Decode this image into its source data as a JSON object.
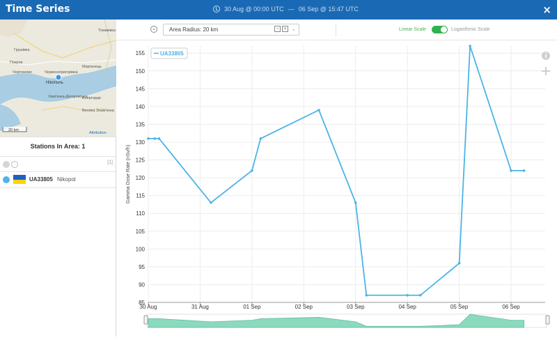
{
  "window": {
    "title": "Time Series",
    "range_start": "30 Aug @ 00:00 UTC",
    "range_sep": "—",
    "range_end": "06 Sep @ 15:47 UTC",
    "close_icon": "×"
  },
  "map": {
    "labels": [
      "Томаківка",
      "Грушівка",
      "Покров",
      "Чортомлик",
      "Червоногригорівка",
      "Марганець",
      "Нікополь",
      "Кам'янка-Дніпровська",
      "Енергодар",
      "Велика Знам'янка"
    ],
    "scale": "20 km",
    "attribution": "Attribution",
    "water_color": "#a9cde3",
    "marker_color": "#3b97e3"
  },
  "sidebar": {
    "stations_title": "Stations In Area: 1",
    "all_count": "[1]",
    "station": {
      "code": "UA33805",
      "name": "Nikopol",
      "color": "#4fb3e8"
    }
  },
  "toolbar": {
    "radius_label": "Area Radius: 20 km",
    "minus": "−",
    "plus": "+",
    "chevron": "⌄",
    "linear_label": "Linear Scale",
    "log_label": "Logarithmic Scale",
    "scale_is_linear": true
  },
  "chart_data": {
    "type": "line",
    "title": "",
    "xlabel": "",
    "ylabel": "Gamma Dose Rate (nSv/h)",
    "legend": "UA33805",
    "legend_placement": "top-left",
    "line_color": "#4ab4e6",
    "navigator_color": "#6fd2ad",
    "grid": true,
    "ylim": [
      85,
      157
    ],
    "yticks": [
      85,
      90,
      95,
      100,
      105,
      110,
      115,
      120,
      125,
      130,
      135,
      140,
      145,
      150,
      155
    ],
    "xlim": [
      "2025-08-30T00:00",
      "2025-09-06T15:47"
    ],
    "xticks": [
      {
        "t": "2025-08-30T00:00",
        "label": "30 Aug"
      },
      {
        "t": "2025-08-31T00:00",
        "label": "31 Aug"
      },
      {
        "t": "2025-09-01T00:00",
        "label": "01 Sep"
      },
      {
        "t": "2025-09-02T00:00",
        "label": "02 Sep"
      },
      {
        "t": "2025-09-03T00:00",
        "label": "03 Sep"
      },
      {
        "t": "2025-09-04T00:00",
        "label": "04 Sep"
      },
      {
        "t": "2025-09-05T00:00",
        "label": "05 Sep"
      },
      {
        "t": "2025-09-06T00:00",
        "label": "06 Sep"
      }
    ],
    "series": [
      {
        "name": "UA33805",
        "points": [
          {
            "t": "2025-08-30T00:00",
            "y": 131
          },
          {
            "t": "2025-08-30T03:00",
            "y": 131
          },
          {
            "t": "2025-08-30T05:00",
            "y": 131
          },
          {
            "t": "2025-08-31T05:00",
            "y": 113
          },
          {
            "t": "2025-09-01T00:00",
            "y": 122
          },
          {
            "t": "2025-09-01T04:00",
            "y": 131
          },
          {
            "t": "2025-09-02T07:00",
            "y": 139
          },
          {
            "t": "2025-09-03T00:00",
            "y": 113
          },
          {
            "t": "2025-09-03T05:00",
            "y": 87
          },
          {
            "t": "2025-09-04T00:00",
            "y": 87
          },
          {
            "t": "2025-09-04T06:00",
            "y": 87
          },
          {
            "t": "2025-09-05T00:00",
            "y": 96
          },
          {
            "t": "2025-09-05T05:00",
            "y": 157
          },
          {
            "t": "2025-09-06T00:00",
            "y": 122
          },
          {
            "t": "2025-09-06T06:00",
            "y": 122
          }
        ]
      }
    ]
  }
}
